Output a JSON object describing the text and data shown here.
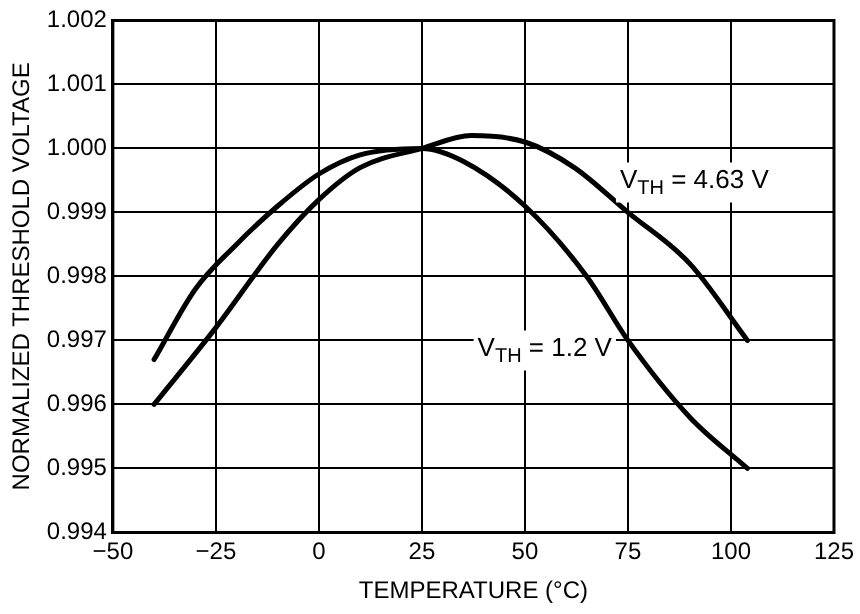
{
  "chart_data": {
    "type": "line",
    "xlabel": "TEMPERATURE (°C)",
    "ylabel": "NORMALIZED THRESHOLD VOLTAGE",
    "xlim": [
      -50,
      125
    ],
    "xticks": [
      {
        "value": -50,
        "label": "−50"
      },
      {
        "value": -25,
        "label": "−25"
      },
      0,
      25,
      50,
      75,
      100,
      125
    ],
    "ylim": [
      0.994,
      1.002
    ],
    "yticks": [
      {
        "value": 0.994,
        "label": "0.994"
      },
      {
        "value": 0.995,
        "label": "0.995"
      },
      {
        "value": 0.996,
        "label": "0.996"
      },
      {
        "value": 0.997,
        "label": "0.997"
      },
      {
        "value": 0.998,
        "label": "0.998"
      },
      {
        "value": 0.999,
        "label": "0.999"
      },
      {
        "value": 1.0,
        "label": "1.000"
      },
      {
        "value": 1.001,
        "label": "1.001"
      },
      {
        "value": 1.002,
        "label": "1.002"
      }
    ],
    "grid": true,
    "legend": false,
    "marker": "none",
    "line_style": "solid",
    "series": [
      {
        "name": "V$_{TH}$ = 4.63 V",
        "color": "#000000",
        "x": [
          -40,
          -25,
          -10,
          0,
          10,
          25,
          37,
          50,
          62,
          75,
          90,
          104
        ],
        "values": [
          0.996,
          0.9972,
          0.9985,
          0.9992,
          0.9997,
          1.0,
          1.0002,
          1.0001,
          0.9997,
          0.999,
          0.9982,
          0.997
        ]
      },
      {
        "name": "V$_{TH}$ = 1.2 V",
        "color": "#000000",
        "x": [
          -40,
          -30,
          -20,
          -10,
          0,
          10,
          25,
          35,
          50,
          65,
          75,
          90,
          104
        ],
        "values": [
          0.9967,
          0.9978,
          0.9985,
          0.9991,
          0.9996,
          0.9999,
          1.0,
          0.9998,
          0.9991,
          0.998,
          0.997,
          0.9958,
          0.995
        ]
      }
    ]
  }
}
